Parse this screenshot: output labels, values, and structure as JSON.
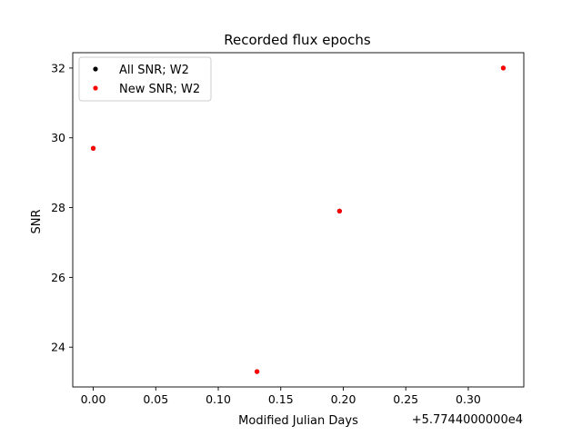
{
  "chart_data": {
    "type": "scatter",
    "title": "Recorded flux epochs",
    "xlabel": "Modified Julian Days",
    "ylabel": "SNR",
    "x_offset_label": "+5.7744000000e4",
    "xlim": [
      -0.0164,
      0.3444
    ],
    "ylim": [
      22.86,
      32.44
    ],
    "xticks": [
      0.0,
      0.05,
      0.1,
      0.15,
      0.2,
      0.25,
      0.3
    ],
    "xtick_labels": [
      "0.00",
      "0.05",
      "0.10",
      "0.15",
      "0.20",
      "0.25",
      "0.30"
    ],
    "yticks": [
      24,
      26,
      28,
      30,
      32
    ],
    "ytick_labels": [
      "24",
      "26",
      "28",
      "30",
      "32"
    ],
    "grid": false,
    "legend_position": "upper-left",
    "series": [
      {
        "name": "All SNR; W2",
        "color": "#000000",
        "points": [
          {
            "x": 0.0,
            "y": 29.7
          },
          {
            "x": 0.131,
            "y": 23.3
          },
          {
            "x": 0.197,
            "y": 27.9
          },
          {
            "x": 0.328,
            "y": 32.0
          }
        ]
      },
      {
        "name": "New SNR; W2",
        "color": "#ff0000",
        "points": [
          {
            "x": 0.0,
            "y": 29.7
          },
          {
            "x": 0.131,
            "y": 23.3
          },
          {
            "x": 0.197,
            "y": 27.9
          },
          {
            "x": 0.328,
            "y": 32.0
          }
        ]
      }
    ]
  }
}
